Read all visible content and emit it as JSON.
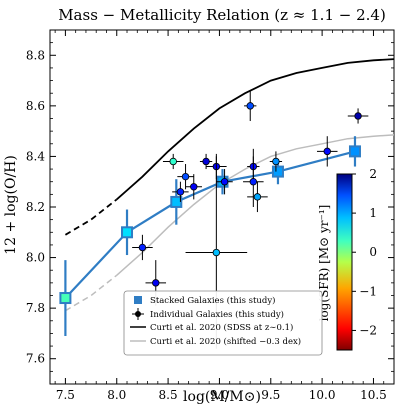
{
  "chart_data": {
    "type": "scatter",
    "title": "Mass − Metallicity Relation (z ≈ 1.1 − 2.4)",
    "xlabel": "log(M/M⊙)",
    "ylabel": "12 + log(O/H)",
    "xlim": [
      7.35,
      10.7
    ],
    "ylim": [
      7.5,
      8.9
    ],
    "xticks": [
      7.5,
      8.0,
      8.5,
      9.0,
      9.5,
      10.0,
      10.5
    ],
    "xtick_labels": [
      "7.5",
      "8.0",
      "8.5",
      "9.0",
      "9.5",
      "10.0",
      "10.5"
    ],
    "yticks": [
      7.6,
      7.8,
      8.0,
      8.2,
      8.4,
      8.6,
      8.8
    ],
    "ytick_labels": [
      "7.6",
      "7.8",
      "8.0",
      "8.2",
      "8.4",
      "8.6",
      "8.8"
    ],
    "grid": false,
    "legend_position": "lower-right",
    "legend": [
      {
        "marker": "square",
        "label": "Stacked Galaxies (this study)"
      },
      {
        "marker": "circle",
        "label": "Individual Galaxies (this study)"
      },
      {
        "marker": "line",
        "label": "Curti et al. 2020 (SDSS at z∼0.1)"
      },
      {
        "marker": "line",
        "label": "Curti et al. 2020 (shifted −0.3 dex)"
      }
    ],
    "colorbar": {
      "label": "log(SFR) [M⊙ yr⁻¹]",
      "range": [
        -2.5,
        2
      ],
      "ticks": [
        -2,
        -1,
        0,
        1,
        2
      ],
      "tick_labels": [
        "−2",
        "−1",
        "0",
        "1",
        "2"
      ],
      "colormap": "jet_r"
    },
    "series": [
      {
        "name": "Stacked Galaxies (this study)",
        "type": "line+marker",
        "color": "#2f7dc4",
        "points": [
          {
            "x": 7.5,
            "y": 7.84,
            "yerr": 0.15,
            "sfr": 0.0
          },
          {
            "x": 8.1,
            "y": 8.1,
            "yerr": 0.09,
            "sfr": 0.45
          },
          {
            "x": 8.58,
            "y": 8.22,
            "yerr": 0.09,
            "sfr": 0.6
          },
          {
            "x": 9.03,
            "y": 8.3,
            "yerr": 0.05,
            "sfr": 0.65
          },
          {
            "x": 9.57,
            "y": 8.34,
            "yerr": 0.05,
            "sfr": 0.75
          },
          {
            "x": 10.32,
            "y": 8.42,
            "yerr": 0.06,
            "sfr": 0.8
          }
        ]
      },
      {
        "name": "Individual Galaxies (this study)",
        "type": "scatter",
        "points": [
          {
            "x": 8.25,
            "y": 8.04,
            "xerr": 0.1,
            "yerr": 0.05,
            "sfr": 1.3
          },
          {
            "x": 8.38,
            "y": 7.9,
            "xerr": 0.1,
            "yerr": 0.09,
            "sfr": 1.5
          },
          {
            "x": 8.55,
            "y": 8.38,
            "xerr": 0.1,
            "yerr": 0.03,
            "sfr": 0.1
          },
          {
            "x": 8.62,
            "y": 8.26,
            "xerr": 0.08,
            "yerr": 0.04,
            "sfr": 1.3
          },
          {
            "x": 8.67,
            "y": 8.32,
            "xerr": 0.08,
            "yerr": 0.05,
            "sfr": 1.1
          },
          {
            "x": 8.75,
            "y": 8.28,
            "xerr": 0.08,
            "yerr": 0.05,
            "sfr": 1.5
          },
          {
            "x": 8.87,
            "y": 8.38,
            "xerr": 0.06,
            "yerr": 0.03,
            "sfr": 1.6
          },
          {
            "x": 8.97,
            "y": 8.36,
            "xerr": 0.1,
            "yerr": 0.05,
            "sfr": 1.5
          },
          {
            "x": 8.97,
            "y": 8.02,
            "xerr": 0.3,
            "yerr": 0.38,
            "sfr": 0.6
          },
          {
            "x": 9.05,
            "y": 8.3,
            "xerr": 0.08,
            "yerr": 0.05,
            "sfr": 1.4
          },
          {
            "x": 9.3,
            "y": 8.6,
            "xerr": 0.06,
            "yerr": 0.06,
            "sfr": 1.1
          },
          {
            "x": 9.33,
            "y": 8.36,
            "xerr": 0.06,
            "yerr": 0.07,
            "sfr": 1.4
          },
          {
            "x": 9.33,
            "y": 8.3,
            "xerr": 0.1,
            "yerr": 0.1,
            "sfr": 1.3
          },
          {
            "x": 9.37,
            "y": 8.24,
            "xerr": 0.1,
            "yerr": 0.06,
            "sfr": 0.7
          },
          {
            "x": 9.55,
            "y": 8.38,
            "xerr": 0.06,
            "yerr": 0.04,
            "sfr": 0.8
          },
          {
            "x": 10.05,
            "y": 8.42,
            "xerr": 0.1,
            "yerr": 0.06,
            "sfr": 1.4
          },
          {
            "x": 10.35,
            "y": 8.56,
            "xerr": 0.1,
            "yerr": 0.03,
            "sfr": 1.8
          }
        ]
      },
      {
        "name": "Curti et al. 2020 (SDSS at z∼0.1)",
        "type": "line",
        "color": "#000000",
        "dashed_below": 8.0,
        "points": [
          {
            "x": 7.5,
            "y": 8.09
          },
          {
            "x": 7.75,
            "y": 8.15
          },
          {
            "x": 8.0,
            "y": 8.23
          },
          {
            "x": 8.25,
            "y": 8.32
          },
          {
            "x": 8.5,
            "y": 8.42
          },
          {
            "x": 8.75,
            "y": 8.51
          },
          {
            "x": 9.0,
            "y": 8.59
          },
          {
            "x": 9.25,
            "y": 8.65
          },
          {
            "x": 9.5,
            "y": 8.7
          },
          {
            "x": 9.75,
            "y": 8.73
          },
          {
            "x": 10.0,
            "y": 8.75
          },
          {
            "x": 10.25,
            "y": 8.77
          },
          {
            "x": 10.5,
            "y": 8.78
          },
          {
            "x": 10.7,
            "y": 8.785
          }
        ]
      },
      {
        "name": "Curti et al. 2020 (shifted −0.3 dex)",
        "type": "line",
        "color": "#bdbdbd",
        "dashed_below": 8.0,
        "points": [
          {
            "x": 7.5,
            "y": 7.79
          },
          {
            "x": 7.75,
            "y": 7.85
          },
          {
            "x": 8.0,
            "y": 7.93
          },
          {
            "x": 8.25,
            "y": 8.02
          },
          {
            "x": 8.5,
            "y": 8.12
          },
          {
            "x": 8.75,
            "y": 8.21
          },
          {
            "x": 9.0,
            "y": 8.29
          },
          {
            "x": 9.25,
            "y": 8.35
          },
          {
            "x": 9.5,
            "y": 8.4
          },
          {
            "x": 9.75,
            "y": 8.43
          },
          {
            "x": 10.0,
            "y": 8.45
          },
          {
            "x": 10.25,
            "y": 8.47
          },
          {
            "x": 10.5,
            "y": 8.48
          },
          {
            "x": 10.7,
            "y": 8.485
          }
        ]
      }
    ]
  }
}
